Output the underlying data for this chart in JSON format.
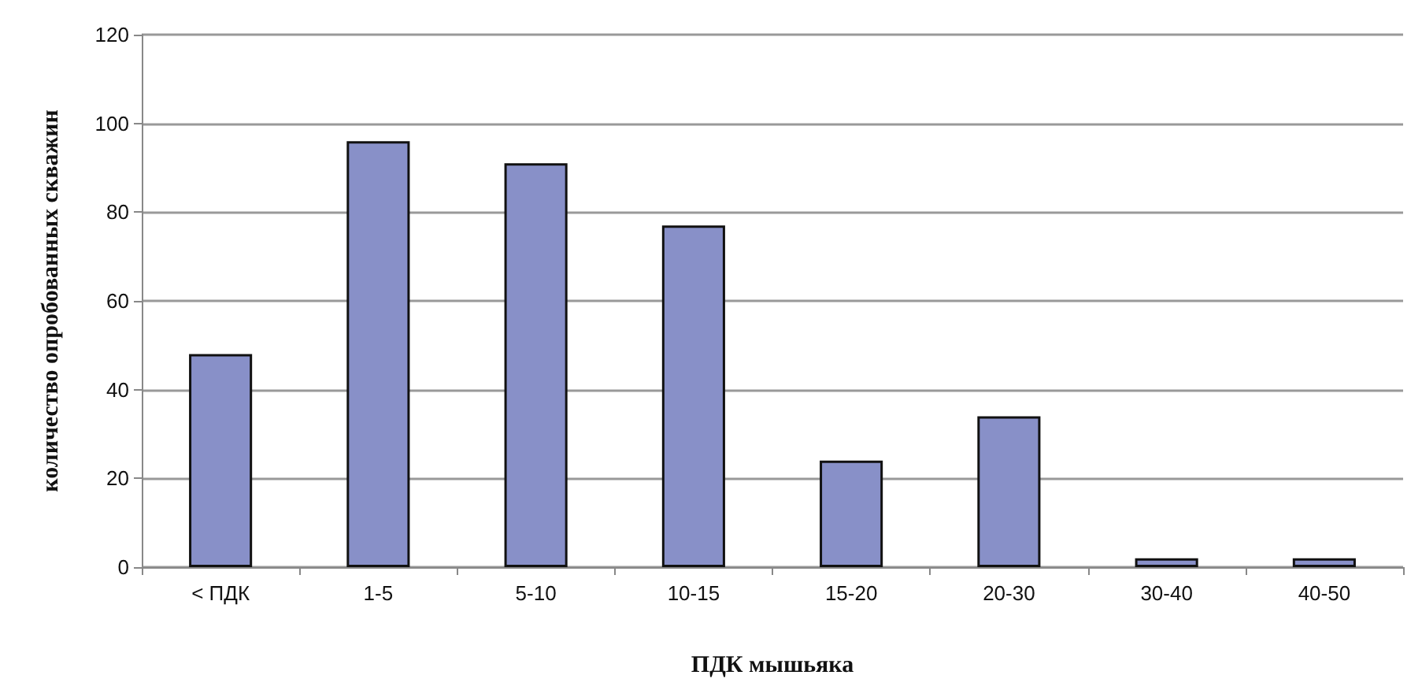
{
  "chart_data": {
    "type": "bar",
    "xlabel": "ПДК мышьяка",
    "ylabel": "количество опробованных скважин",
    "categories": [
      "< ПДК",
      "1-5",
      "5-10",
      "10-15",
      "15-20",
      "20-30",
      "30-40",
      "40-50"
    ],
    "values": [
      48,
      96,
      91,
      77,
      24,
      34,
      2,
      2
    ],
    "color": "#8890c8",
    "ylim": [
      0,
      120
    ],
    "yticks": [
      0,
      20,
      40,
      60,
      80,
      100,
      120
    ],
    "grid": "y"
  }
}
